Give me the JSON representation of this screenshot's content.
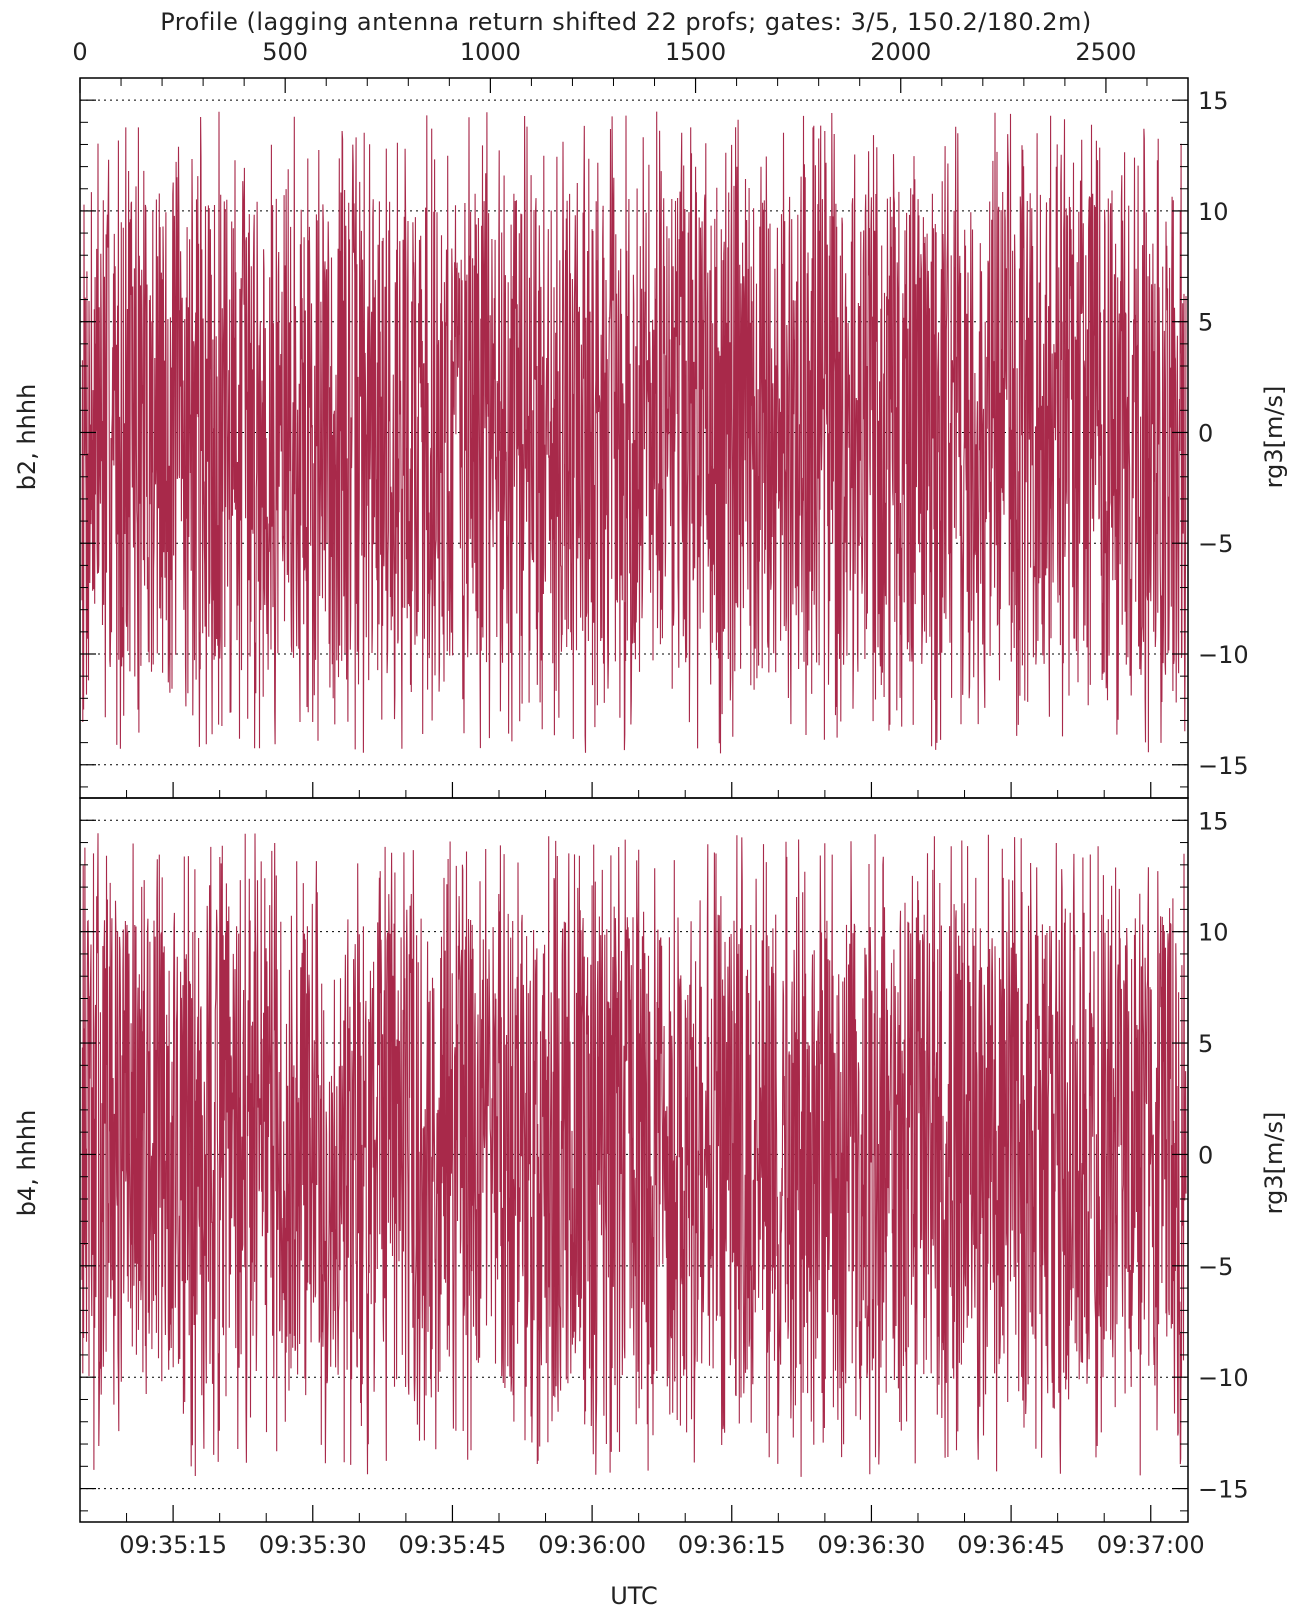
{
  "chart_data": {
    "type": "line",
    "title": "Profile (lagging antenna return shifted 22 profs; gates: 3/5, 150.2/180.2m)",
    "top_axis": {
      "label": "Profile",
      "range": [
        0,
        2700
      ],
      "ticks": [
        0,
        500,
        1000,
        1500,
        2000,
        2500
      ]
    },
    "xlabel": "UTC",
    "x_time_range": [
      "09:35:05",
      "09:37:04"
    ],
    "x_ticks": [
      "09:35:15",
      "09:35:30",
      "09:35:45",
      "09:36:00",
      "09:36:15",
      "09:36:30",
      "09:36:45",
      "09:37:00"
    ],
    "grid": "horizontal dotted at ±15, ±10, ±5, 0",
    "line_color": "#a8294a",
    "panels": [
      {
        "left_label": "b2, hhhh",
        "right_label": "rg3[m/s]",
        "ylim": [
          -16.5,
          16
        ],
        "y_ticks": [
          15,
          10,
          5,
          0,
          -5,
          -10,
          -15
        ],
        "y_tick_labels": [
          "15",
          "10",
          "5",
          "0",
          "−5",
          "−10",
          "−15"
        ],
        "series": [
          {
            "n_points": 2700,
            "amplitude_range": [
              -14.5,
              14.5
            ],
            "seed": 7
          }
        ]
      },
      {
        "left_label": "b4, hhhh",
        "right_label": "rg3[m/s]",
        "ylim": [
          -16.5,
          16
        ],
        "y_ticks": [
          15,
          10,
          5,
          0,
          -5,
          -10,
          -15
        ],
        "y_tick_labels": [
          "15",
          "10",
          "5",
          "0",
          "−5",
          "−10",
          "−15"
        ],
        "series": [
          {
            "n_points": 2700,
            "amplitude_range": [
              -14.5,
              14.5
            ],
            "seed": 13
          }
        ]
      }
    ]
  }
}
